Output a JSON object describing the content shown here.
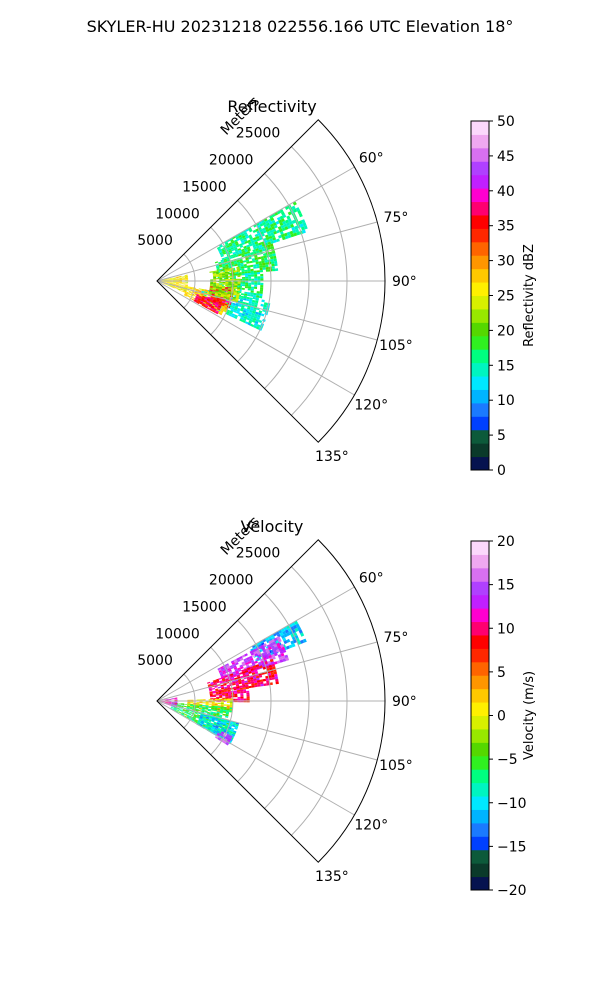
{
  "figure": {
    "title": "SKYLER-HU  20231218  022556.166 UTC Elevation 18°"
  },
  "chart_data": [
    {
      "type": "heatmap",
      "subtype": "polar-sector (PPI radar scan)",
      "title": "Reflectivity",
      "radial_label": "Meters",
      "radial_ticks": [
        5000,
        10000,
        15000,
        20000,
        25000
      ],
      "radial_tick_labels": [
        "5000",
        "10000",
        "15000",
        "20000",
        "25000"
      ],
      "radial_range_m": [
        0,
        30000
      ],
      "azimuth_range_deg": [
        45,
        135
      ],
      "azimuth_ticks": [
        60,
        75,
        90,
        105,
        120,
        135
      ],
      "azimuth_tick_labels": [
        "60°",
        "75°",
        "90°",
        "105°",
        "120°",
        "135°"
      ],
      "grid": true,
      "colorbar": {
        "label": "Reflectivity dBZ",
        "range": [
          0,
          50
        ],
        "ticks": [
          0,
          5,
          10,
          15,
          20,
          25,
          30,
          35,
          40,
          45,
          50
        ],
        "tick_labels": [
          "0",
          "5",
          "10",
          "15",
          "20",
          "25",
          "30",
          "35",
          "40",
          "45",
          "50"
        ],
        "colors": [
          "#06134f",
          "#0a3a2a",
          "#0c5a3a",
          "#0040ff",
          "#1a7aff",
          "#00b4ff",
          "#00e8ff",
          "#00f5c0",
          "#00ff80",
          "#30f020",
          "#55d800",
          "#98e800",
          "#d8f000",
          "#fff000",
          "#ffc800",
          "#ff9600",
          "#ff6400",
          "#ff2800",
          "#ff0000",
          "#ff0070",
          "#ff00d0",
          "#c020ff",
          "#b040ff",
          "#d870f0",
          "#f0a8f0",
          "#fcd8fc"
        ]
      },
      "echo_regions": [
        {
          "azimuth_deg": [
            60,
            72
          ],
          "range_m": [
            9000,
            21000
          ],
          "dbz": 16
        },
        {
          "azimuth_deg": [
            72,
            85
          ],
          "range_m": [
            8000,
            16000
          ],
          "dbz": 17
        },
        {
          "azimuth_deg": [
            85,
            100
          ],
          "range_m": [
            8000,
            14000
          ],
          "dbz": 16
        },
        {
          "azimuth_deg": [
            100,
            115
          ],
          "range_m": [
            6000,
            15000
          ],
          "dbz": 14
        },
        {
          "azimuth_deg": [
            78,
            112
          ],
          "range_m": [
            500,
            4000
          ],
          "dbz": 26
        },
        {
          "azimuth_deg": [
            100,
            118
          ],
          "range_m": [
            4000,
            10000
          ],
          "dbz": 27
        },
        {
          "azimuth_deg": [
            108,
            118
          ],
          "range_m": [
            5500,
            9000
          ],
          "dbz": 36
        },
        {
          "azimuth_deg": [
            95,
            110
          ],
          "range_m": [
            7000,
            10000
          ],
          "dbz": 36
        },
        {
          "azimuth_deg": [
            80,
            105
          ],
          "range_m": [
            7000,
            11000
          ],
          "dbz": 22
        }
      ]
    },
    {
      "type": "heatmap",
      "subtype": "polar-sector (PPI radar scan)",
      "title": "Velocity",
      "radial_label": "Meters",
      "radial_ticks": [
        5000,
        10000,
        15000,
        20000,
        25000
      ],
      "radial_tick_labels": [
        "5000",
        "10000",
        "15000",
        "20000",
        "25000"
      ],
      "radial_range_m": [
        0,
        30000
      ],
      "azimuth_range_deg": [
        45,
        135
      ],
      "azimuth_ticks": [
        60,
        75,
        90,
        105,
        120,
        135
      ],
      "azimuth_tick_labels": [
        "60°",
        "75°",
        "90°",
        "105°",
        "120°",
        "135°"
      ],
      "grid": true,
      "colorbar": {
        "label": "Velocity (m/s)",
        "range": [
          -20,
          20
        ],
        "ticks": [
          -20,
          -15,
          -10,
          -5,
          0,
          5,
          10,
          15,
          20
        ],
        "tick_labels": [
          "−20",
          "−15",
          "−10",
          "−5",
          "0",
          "5",
          "10",
          "15",
          "20"
        ],
        "colors": [
          "#06134f",
          "#0a3a2a",
          "#0c5a3a",
          "#0040ff",
          "#1a7aff",
          "#00b4ff",
          "#00e8ff",
          "#00f5c0",
          "#00ff80",
          "#30f020",
          "#55d800",
          "#98e800",
          "#d8f000",
          "#fff000",
          "#ffc800",
          "#ff9600",
          "#ff6400",
          "#ff2800",
          "#ff0000",
          "#ff0070",
          "#ff00d0",
          "#c020ff",
          "#b040ff",
          "#d870f0",
          "#f0a8f0",
          "#fcd8fc"
        ]
      },
      "echo_regions": [
        {
          "azimuth_deg": [
            60,
            68
          ],
          "range_m": [
            14000,
            21000
          ],
          "velocity": -11
        },
        {
          "azimuth_deg": [
            62,
            72
          ],
          "range_m": [
            9000,
            18000
          ],
          "velocity": 14
        },
        {
          "azimuth_deg": [
            70,
            82
          ],
          "range_m": [
            7000,
            16000
          ],
          "velocity": 10
        },
        {
          "azimuth_deg": [
            80,
            90
          ],
          "range_m": [
            7000,
            12000
          ],
          "velocity": 9
        },
        {
          "azimuth_deg": [
            88,
            100
          ],
          "range_m": [
            4000,
            10000
          ],
          "velocity": 1
        },
        {
          "azimuth_deg": [
            95,
            118
          ],
          "range_m": [
            2000,
            10000
          ],
          "velocity": -6
        },
        {
          "azimuth_deg": [
            105,
            120
          ],
          "range_m": [
            6000,
            11000
          ],
          "velocity": -10
        },
        {
          "azimuth_deg": [
            80,
            110
          ],
          "range_m": [
            300,
            2500
          ],
          "velocity": 12
        },
        {
          "azimuth_deg": [
            115,
            122
          ],
          "range_m": [
            9000,
            11000
          ],
          "velocity": 15
        }
      ]
    }
  ]
}
